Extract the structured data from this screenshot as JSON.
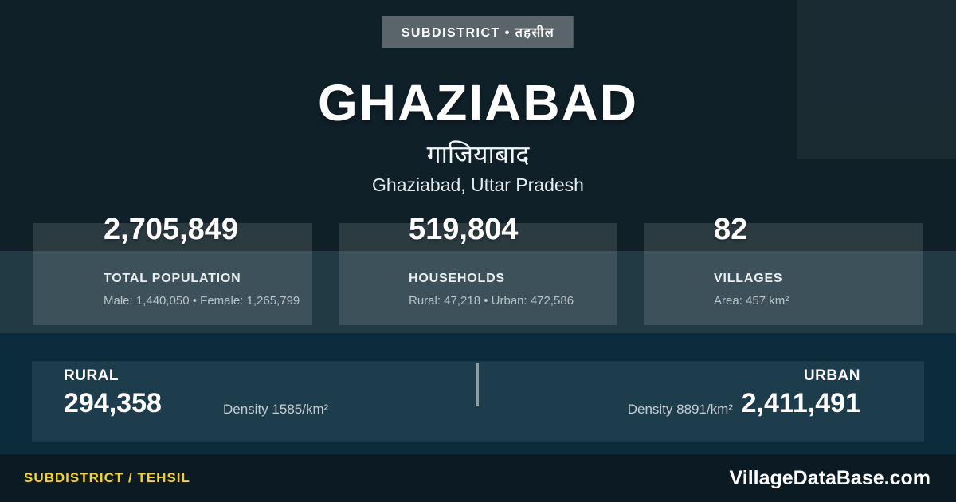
{
  "badge": {
    "label": "SUBDISTRICT • तहसील"
  },
  "header": {
    "title": "GHAZIABAD",
    "title_hindi": "गाजियाबाद",
    "subtitle": "Ghaziabad, Uttar Pradesh"
  },
  "stats": [
    {
      "value": "2,705,849",
      "label": "TOTAL POPULATION",
      "detail": "Male: 1,440,050 • Female: 1,265,799"
    },
    {
      "value": "519,804",
      "label": "HOUSEHOLDS",
      "detail": "Rural: 47,218 • Urban: 472,586"
    },
    {
      "value": "82",
      "label": "VILLAGES",
      "detail": "Area: 457 km²"
    }
  ],
  "split": {
    "rural": {
      "label": "RURAL",
      "value": "294,358",
      "density": "Density 1585/km²"
    },
    "urban": {
      "label": "URBAN",
      "value": "2,411,491",
      "density": "Density 8891/km²"
    }
  },
  "footer": {
    "left": "SUBDISTRICT / TEHSIL",
    "right": "VillageDataBase.com"
  },
  "colors": {
    "background": "#0f2028",
    "stats_band": "#213a44",
    "split_section": "#0a2c3d",
    "footer": "#0c1b23",
    "accent_yellow": "#f5d422",
    "badge_gray": "#59646b"
  }
}
